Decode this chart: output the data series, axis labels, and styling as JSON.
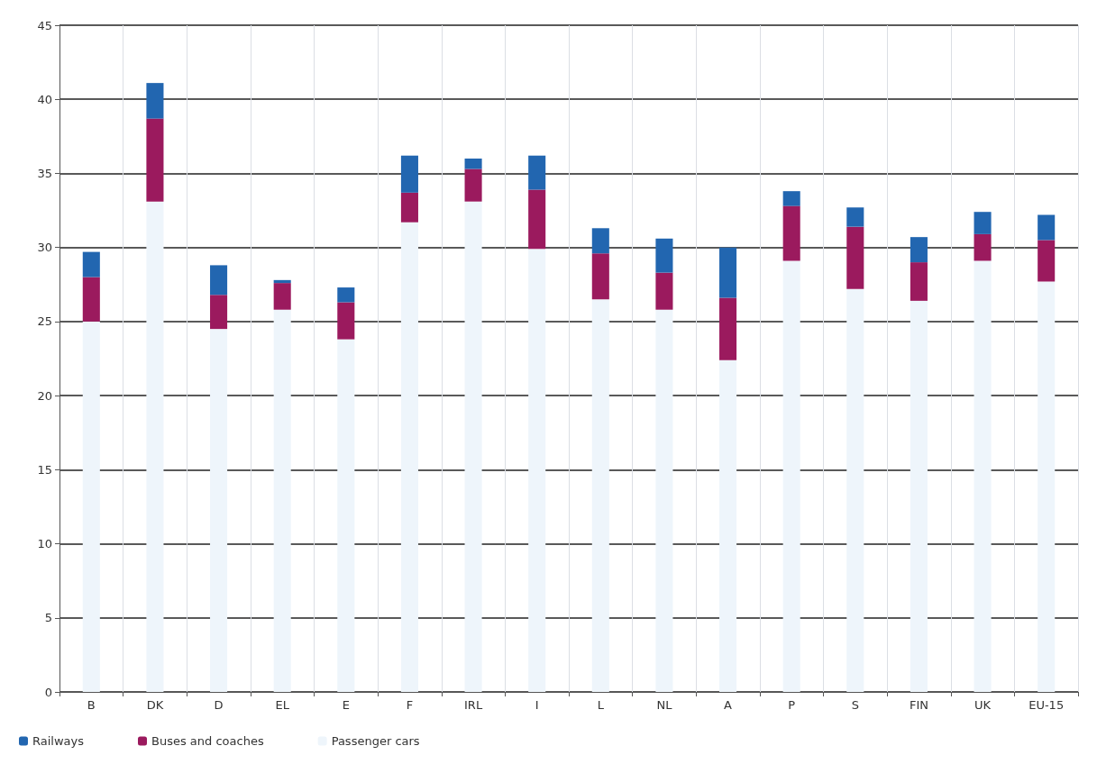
{
  "chart_data": {
    "type": "bar",
    "stacked": true,
    "categories": [
      "B",
      "DK",
      "D",
      "EL",
      "E",
      "F",
      "IRL",
      "I",
      "L",
      "NL",
      "A",
      "P",
      "S",
      "FIN",
      "UK",
      "EU-15"
    ],
    "series": [
      {
        "name": "Passenger cars",
        "color": "#eef5fb",
        "values": [
          25,
          33.1,
          24.5,
          25.8,
          23.8,
          31.7,
          33.1,
          29.9,
          26.5,
          25.8,
          22.4,
          29.1,
          27.2,
          26.4,
          29.1,
          27.7
        ]
      },
      {
        "name": "Buses and coaches",
        "color": "#9b1a5e",
        "values": [
          3,
          5.6,
          2.3,
          1.8,
          2.5,
          2,
          2.2,
          4,
          3.1,
          2.5,
          4.2,
          3.7,
          4.2,
          2.6,
          1.8,
          2.8
        ]
      },
      {
        "name": "Railways",
        "color": "#2266b0",
        "values": [
          1.7,
          2.4,
          2,
          0.2,
          1,
          2.5,
          0.7,
          2.3,
          1.7,
          2.3,
          3.4,
          1,
          1.3,
          1.7,
          1.5,
          1.7
        ]
      }
    ],
    "ylim": [
      0,
      45
    ],
    "yticks": [
      0,
      5,
      10,
      15,
      20,
      25,
      30,
      35,
      40,
      45
    ],
    "grid": true,
    "legend": "bottom left"
  }
}
